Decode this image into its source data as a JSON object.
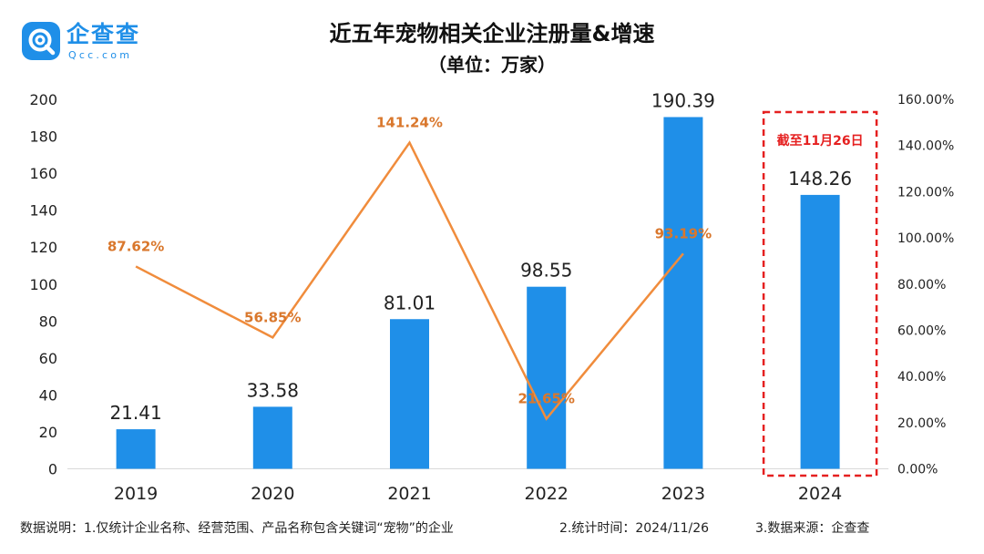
{
  "logo": {
    "name": "企查查",
    "domain": "Qcc.com"
  },
  "title": "近五年宠物相关企业注册量&增速",
  "subtitle": "（单位：万家）",
  "colors": {
    "bar": "#1f8fe8",
    "line": "#f08c3c",
    "growth_label": "#d9772c",
    "highlight": "#e52020",
    "axis_text": "#222222",
    "title": "#111111"
  },
  "chart_data": {
    "type": "bar",
    "title": "近五年宠物相关企业注册量&增速",
    "subtitle": "（单位：万家）",
    "categories": [
      "2019",
      "2020",
      "2021",
      "2022",
      "2023",
      "2024"
    ],
    "series": [
      {
        "type": "bar",
        "axis": "left",
        "values": [
          21.41,
          33.58,
          81.01,
          98.55,
          190.39,
          148.26
        ],
        "labels": [
          "21.41",
          "33.58",
          "81.01",
          "98.55",
          "190.39",
          "148.26"
        ]
      },
      {
        "type": "line",
        "axis": "right",
        "values": [
          87.62,
          56.85,
          141.24,
          21.65,
          93.19,
          null
        ],
        "labels": [
          "87.62%",
          "56.85%",
          "141.24%",
          "21.65%",
          "93.19%",
          ""
        ]
      }
    ],
    "ylim": [
      0,
      200
    ],
    "y_ticks": [
      "0",
      "20",
      "40",
      "60",
      "80",
      "100",
      "120",
      "140",
      "160",
      "180",
      "200"
    ],
    "y2lim": [
      0,
      160
    ],
    "y2_ticks": [
      "0.00%",
      "20.00%",
      "40.00%",
      "60.00%",
      "80.00%",
      "100.00%",
      "120.00%",
      "140.00%",
      "160.00%"
    ],
    "grid": false,
    "legend": "none",
    "annotation": {
      "category": "2024",
      "text": "截至11月26日"
    }
  },
  "footer": {
    "note1": "数据说明：1.仅统计企业名称、经营范围、产品名称包含关键词“宠物”的企业",
    "note2": "2.统计时间：2024/11/26",
    "note3": "3.数据来源：企查查"
  }
}
